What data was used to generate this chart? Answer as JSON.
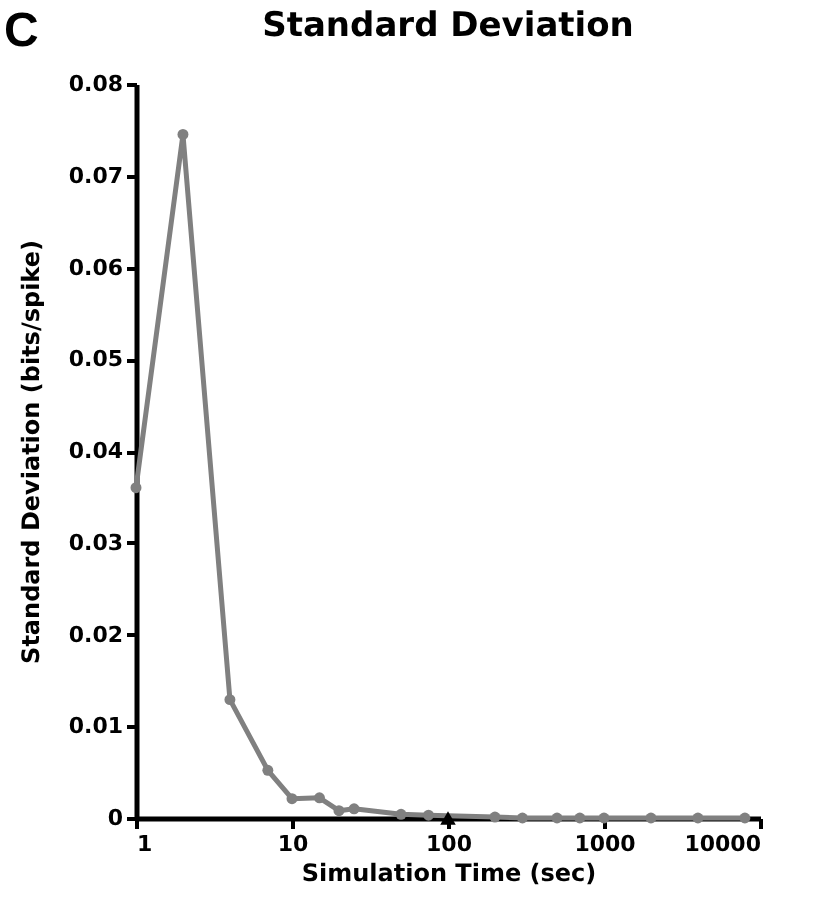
{
  "chart_data": {
    "type": "line",
    "title": "Standard Deviation",
    "xlabel": "Simulation Time (sec)",
    "ylabel": "Standard Deviation (bits/spike)",
    "annotations": [
      "C"
    ],
    "log": "x",
    "xlim": [
      1,
      10000
    ],
    "xticks": [
      1,
      10,
      100,
      1000,
      10000
    ],
    "ylim": [
      0,
      0.08
    ],
    "yticks": [
      0,
      0.01,
      0.02,
      0.03,
      0.04,
      0.05,
      0.06,
      0.07,
      0.08
    ],
    "grid": false,
    "marker": "circle",
    "line_style": "solid",
    "series": [
      {
        "color": "#808080",
        "x": [
          1,
          2,
          4,
          7,
          10,
          15,
          20,
          25,
          50,
          75,
          200,
          300,
          500,
          700,
          1000,
          2000,
          4000,
          8000
        ],
        "values": [
          0.036,
          0.0745,
          0.0129,
          0.0052,
          0.0021,
          0.0022,
          0.0008,
          0.001,
          0.0004,
          0.0003,
          0.0001,
          0,
          0,
          0,
          0,
          0,
          0,
          0
        ]
      },
      {
        "type": "scatter",
        "color": "#000000",
        "marker": "triangle",
        "x": [
          100
        ],
        "values": [
          0
        ]
      }
    ]
  }
}
